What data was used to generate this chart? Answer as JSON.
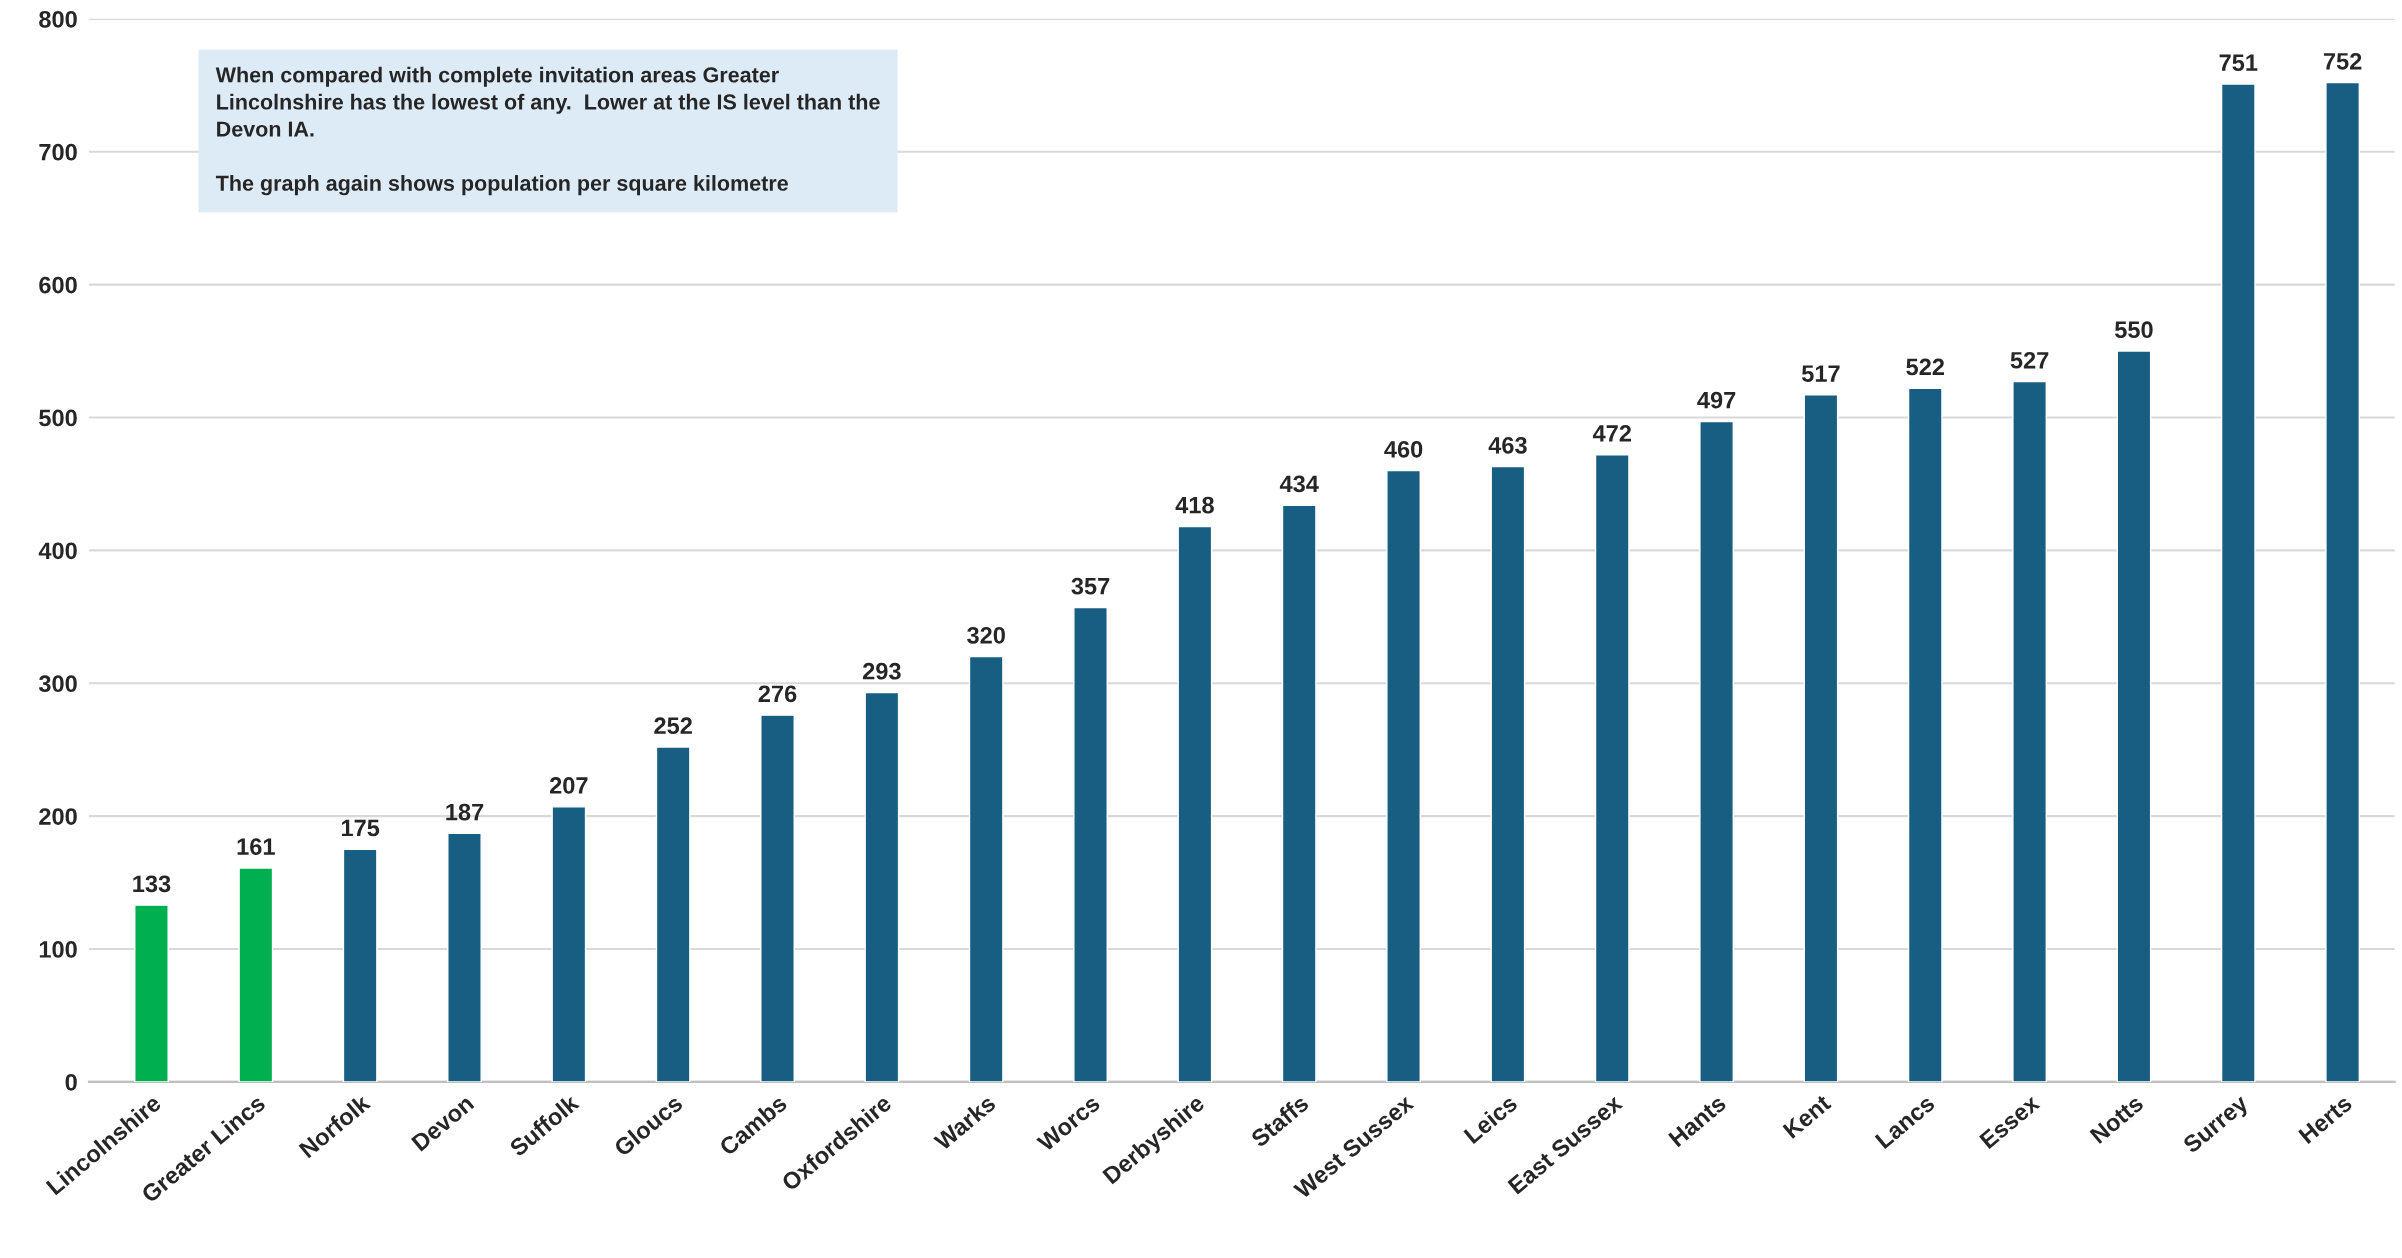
{
  "chart_data": {
    "type": "bar",
    "categories": [
      "Lincolnshire",
      "Greater Lincs",
      "Norfolk",
      "Devon",
      "Suffolk",
      "Gloucs",
      "Cambs",
      "Oxfordshire",
      "Warks",
      "Worcs",
      "Derbyshire",
      "Staffs",
      "West Sussex",
      "Leics",
      "East Sussex",
      "Hants",
      "Kent",
      "Lancs",
      "Essex",
      "Notts",
      "Surrey",
      "Herts"
    ],
    "values": [
      133,
      161,
      175,
      187,
      207,
      252,
      276,
      293,
      320,
      357,
      418,
      434,
      460,
      463,
      472,
      497,
      517,
      522,
      527,
      550,
      751,
      752
    ],
    "colors": [
      "#00b050",
      "#00b050",
      "#175e82",
      "#175e82",
      "#175e82",
      "#175e82",
      "#175e82",
      "#175e82",
      "#175e82",
      "#175e82",
      "#175e82",
      "#175e82",
      "#175e82",
      "#175e82",
      "#175e82",
      "#175e82",
      "#175e82",
      "#175e82",
      "#175e82",
      "#175e82",
      "#175e82",
      "#175e82"
    ],
    "ylim": [
      0,
      800
    ],
    "yticks": [
      0,
      100,
      200,
      300,
      400,
      500,
      600,
      700,
      800
    ],
    "grid": "y",
    "data_labels": true,
    "annotations": [
      "When compared with complete invitation areas Greater\nLincolnshire has the lowest of any.  Lower at the IS level than the\nDevon IA.\n\nThe graph again shows population per square kilometre"
    ]
  }
}
